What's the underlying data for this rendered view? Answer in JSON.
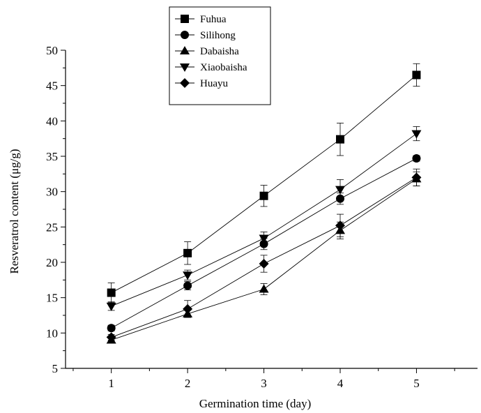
{
  "chart_data": {
    "type": "line",
    "xlabel": "Germination time (day)",
    "ylabel": "Resveratrol content (μg/g)",
    "x": [
      1,
      2,
      3,
      4,
      5
    ],
    "x_ticks": [
      "1",
      "2",
      "3",
      "4",
      "5"
    ],
    "xlim": [
      0.4,
      5.8
    ],
    "ylim": [
      5,
      50
    ],
    "y_ticks": [
      "5",
      "10",
      "15",
      "20",
      "25",
      "30",
      "35",
      "40",
      "45",
      "50"
    ],
    "grid": false,
    "legend_position": "top-center",
    "series": [
      {
        "name": "Fuhua",
        "marker": "square",
        "values": [
          15.7,
          21.3,
          29.4,
          37.4,
          46.5
        ],
        "errors": [
          1.4,
          1.6,
          1.5,
          2.3,
          1.6
        ]
      },
      {
        "name": "Silihong",
        "marker": "circle",
        "values": [
          10.7,
          16.7,
          22.6,
          29.0,
          34.7
        ],
        "errors": [
          0.4,
          0.6,
          0.8,
          0.8,
          0.4
        ]
      },
      {
        "name": "Dabaisha",
        "marker": "triangle-up",
        "values": [
          9.0,
          12.7,
          16.2,
          24.5,
          31.8
        ],
        "errors": [
          0.4,
          0.5,
          0.8,
          1.2,
          1.0
        ]
      },
      {
        "name": "Xiaobaisha",
        "marker": "triangle-down",
        "values": [
          13.8,
          18.2,
          23.4,
          30.3,
          38.2
        ],
        "errors": [
          0.6,
          0.7,
          0.9,
          1.4,
          1.0
        ]
      },
      {
        "name": "Huayu",
        "marker": "diamond",
        "values": [
          9.4,
          13.4,
          19.8,
          25.2,
          32.0
        ],
        "errors": [
          0.4,
          1.2,
          1.2,
          1.6,
          1.2
        ]
      }
    ]
  }
}
